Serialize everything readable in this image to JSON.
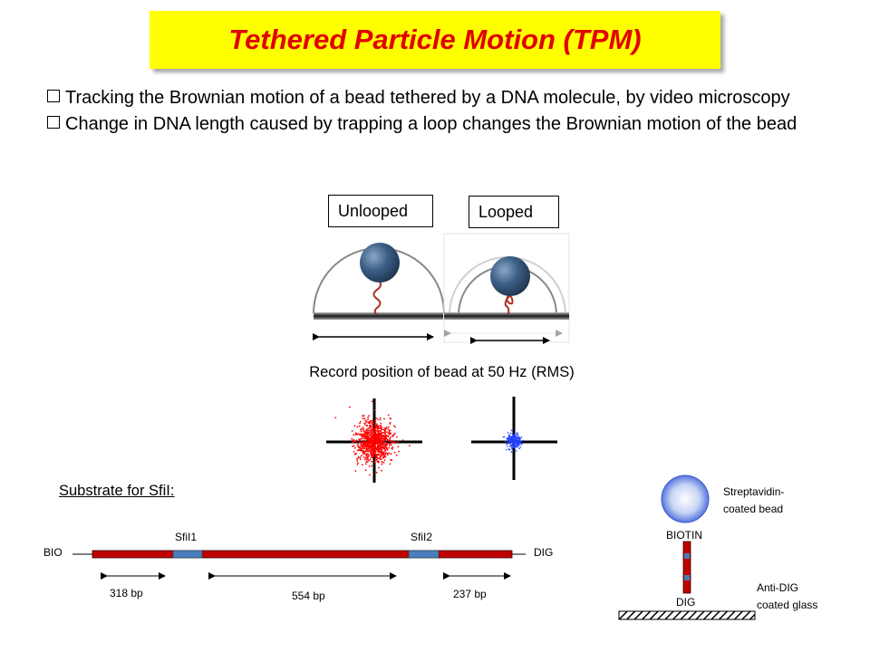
{
  "title": "Tethered Particle Motion (TPM)",
  "bullets": [
    "Tracking the Brownian motion of a bead tethered by a DNA molecule, by video microscopy",
    "Change in DNA length caused by trapping a loop changes the Brownian motion of the bead"
  ],
  "states": {
    "unlooped": "Unlooped",
    "looped": "Looped"
  },
  "record_caption": "Record position of bead at 50 Hz (RMS)",
  "scatter_colors": {
    "unlooped": "#ff0000",
    "looped": "#2244ff"
  },
  "substrate_heading": "Substrate for SfiI:",
  "substrate": {
    "end_left": "BIO",
    "end_right": "DIG",
    "site1": "SfiI1",
    "site2": "SfiI2",
    "segments": [
      "318 bp",
      "554 bp",
      "237 bp"
    ],
    "dna_color": "#c00000",
    "site_color": "#4a7ebb"
  },
  "tether": {
    "bead_label_line1": "Streptavidin-",
    "bead_label_line2": "coated bead",
    "biotin": "BIOTIN",
    "dig": "DIG",
    "glass_line1": "Anti-DIG",
    "glass_line2": "coated glass"
  }
}
